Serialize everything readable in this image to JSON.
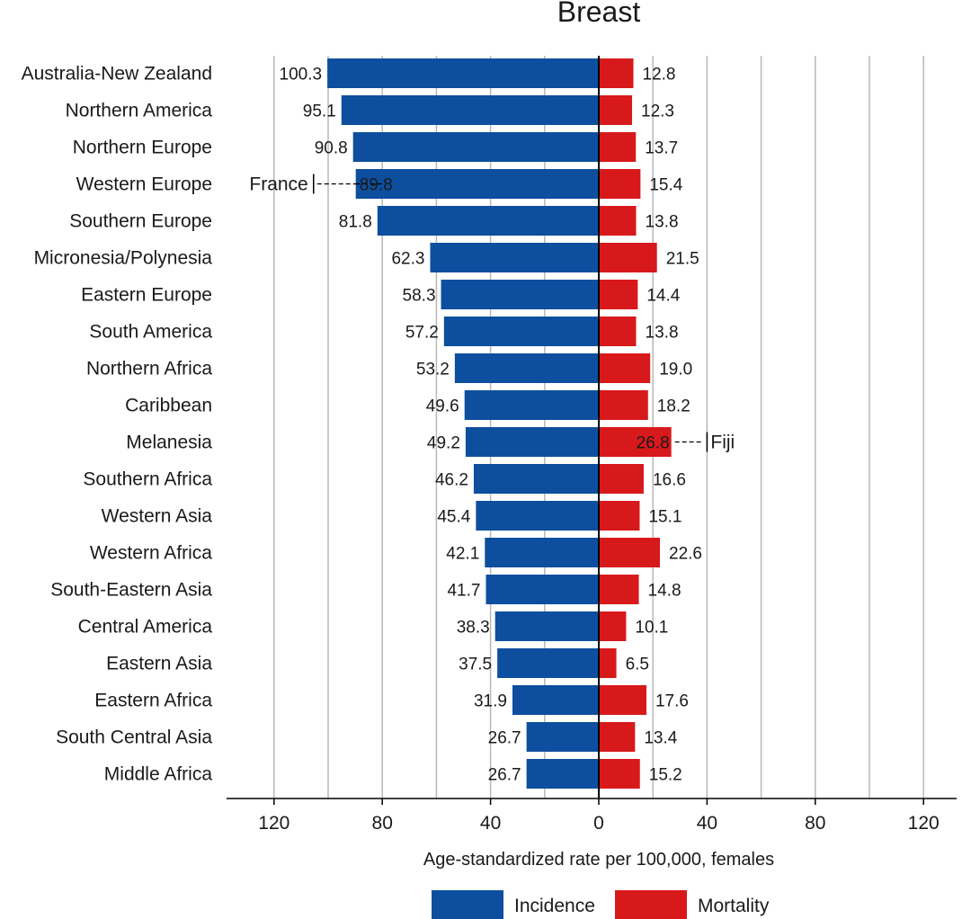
{
  "chart_data": {
    "type": "bar",
    "orientation": "horizontal-diverging",
    "title": "Breast",
    "xlabel": "Age-standardized rate per 100,000, females",
    "xlim": [
      -140,
      120
    ],
    "x_ticks": [
      -120,
      -80,
      -40,
      0,
      40,
      80,
      120
    ],
    "x_tick_labels": [
      "120",
      "80",
      "40",
      "0",
      "40",
      "80",
      "120"
    ],
    "grid": true,
    "legend_position": "bottom",
    "categories": [
      "Australia-New Zealand",
      "Northern America",
      "Northern Europe",
      "Western Europe",
      "Southern Europe",
      "Micronesia/Polynesia",
      "Eastern Europe",
      "South America",
      "Northern Africa",
      "Caribbean",
      "Melanesia",
      "Southern Africa",
      "Western Asia",
      "Western Africa",
      "South-Eastern Asia",
      "Central America",
      "Eastern Asia",
      "Eastern Africa",
      "South Central Asia",
      "Middle Africa"
    ],
    "series": [
      {
        "name": "Incidence",
        "color": "#0d4f9e",
        "side": "left",
        "values": [
          100.3,
          95.1,
          90.8,
          89.8,
          81.8,
          62.3,
          58.3,
          57.2,
          53.2,
          49.6,
          49.2,
          46.2,
          45.4,
          42.1,
          41.7,
          38.3,
          37.5,
          31.9,
          26.7,
          26.7
        ],
        "labels": [
          "100.3",
          "95.1",
          "90.8",
          "89.8",
          "81.8",
          "62.3",
          "58.3",
          "57.2",
          "53.2",
          "49.6",
          "49.2",
          "46.2",
          "45.4",
          "42.1",
          "41.7",
          "38.3",
          "37.5",
          "31.9",
          "26.7",
          "26.7"
        ]
      },
      {
        "name": "Mortality",
        "color": "#d7191c",
        "side": "right",
        "values": [
          12.8,
          12.3,
          13.7,
          15.4,
          13.8,
          21.5,
          14.4,
          13.8,
          19.0,
          18.2,
          26.8,
          16.6,
          15.1,
          22.6,
          14.8,
          10.1,
          6.5,
          17.6,
          13.4,
          15.2
        ],
        "labels": [
          "12.8",
          "12.3",
          "13.7",
          "15.4",
          "13.8",
          "21.5",
          "14.4",
          "13.8",
          "19.0",
          "18.2",
          "26.8",
          "16.6",
          "15.1",
          "22.6",
          "14.8",
          "10.1",
          "6.5",
          "17.6",
          "13.4",
          "15.2"
        ]
      }
    ],
    "annotations": [
      {
        "category": "Western Europe",
        "series": "Incidence",
        "label": "France",
        "value": 105.4
      },
      {
        "category": "Melanesia",
        "series": "Mortality",
        "label": "Fiji",
        "value": 40.0
      }
    ]
  }
}
